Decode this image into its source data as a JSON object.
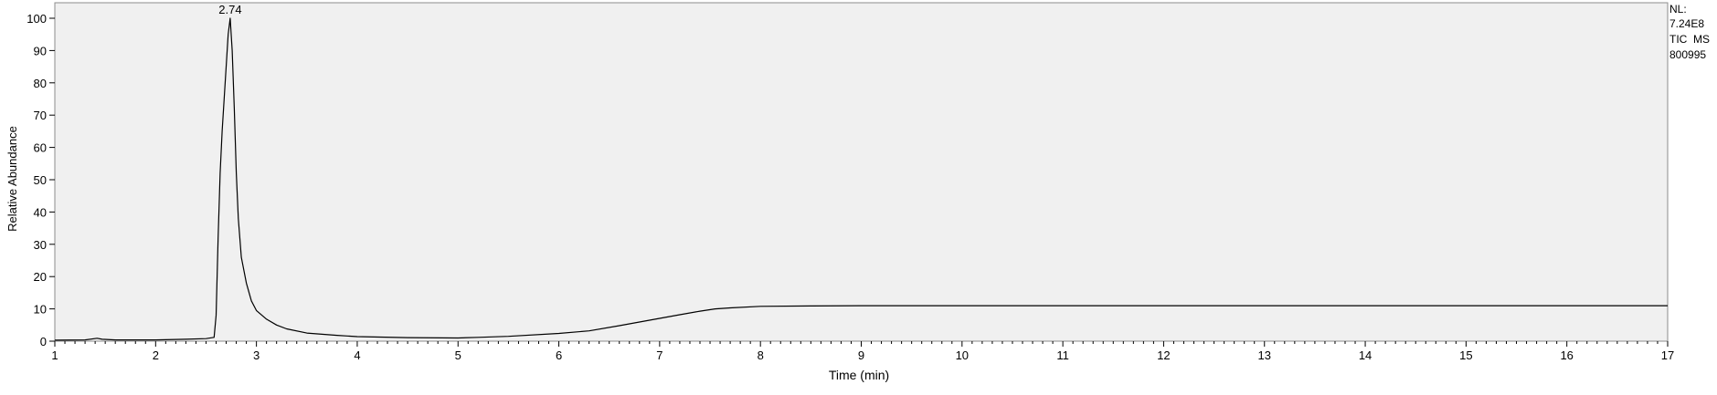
{
  "chart_data": {
    "type": "line",
    "title": "",
    "xlabel": "Time (min)",
    "ylabel": "Relative Abundance",
    "xlim": [
      1,
      17
    ],
    "ylim": [
      0,
      100
    ],
    "x_ticks": [
      1,
      2,
      3,
      4,
      5,
      6,
      7,
      8,
      9,
      10,
      11,
      12,
      13,
      14,
      15,
      16,
      17
    ],
    "y_ticks": [
      0,
      10,
      20,
      30,
      40,
      50,
      60,
      70,
      80,
      90,
      100
    ],
    "grid": false,
    "plot_background": "#f0f0f0",
    "line_color": "#000000",
    "info_text": [
      "NL:",
      "7.24E8",
      "TIC  MS",
      "800995"
    ],
    "peak_annotations": [
      {
        "x": 2.74,
        "y": 100,
        "label": "2.74"
      }
    ],
    "series": [
      {
        "x": [
          1.0,
          1.3,
          1.42,
          1.47,
          1.6,
          2.0,
          2.3,
          2.5,
          2.58,
          2.6,
          2.62,
          2.64,
          2.66,
          2.68,
          2.7,
          2.72,
          2.74,
          2.76,
          2.78,
          2.8,
          2.82,
          2.85,
          2.9,
          2.95,
          3.0,
          3.1,
          3.2,
          3.3,
          3.5,
          3.8,
          4.0,
          4.5,
          5.0,
          5.2,
          5.5,
          6.0,
          6.3,
          6.6,
          6.9,
          7.2,
          7.4,
          7.55,
          7.7,
          8.0,
          8.5,
          9.0,
          10.0,
          11.0,
          12.0,
          13.0,
          14.0,
          15.0,
          16.0,
          17.0
        ],
        "y": [
          0.3,
          0.4,
          0.9,
          0.6,
          0.4,
          0.4,
          0.6,
          0.8,
          1.2,
          8.0,
          32.0,
          52.0,
          65.0,
          75.0,
          85.0,
          95.0,
          100.0,
          90.0,
          72.0,
          52.0,
          38.0,
          26.0,
          18.0,
          12.5,
          9.5,
          6.8,
          5.0,
          3.8,
          2.5,
          1.8,
          1.4,
          1.1,
          1.0,
          1.2,
          1.5,
          2.4,
          3.2,
          4.8,
          6.5,
          8.2,
          9.3,
          10.0,
          10.3,
          10.8,
          10.9,
          11.0,
          11.0,
          11.0,
          11.0,
          11.0,
          11.0,
          11.0,
          11.0,
          11.0
        ]
      }
    ]
  }
}
